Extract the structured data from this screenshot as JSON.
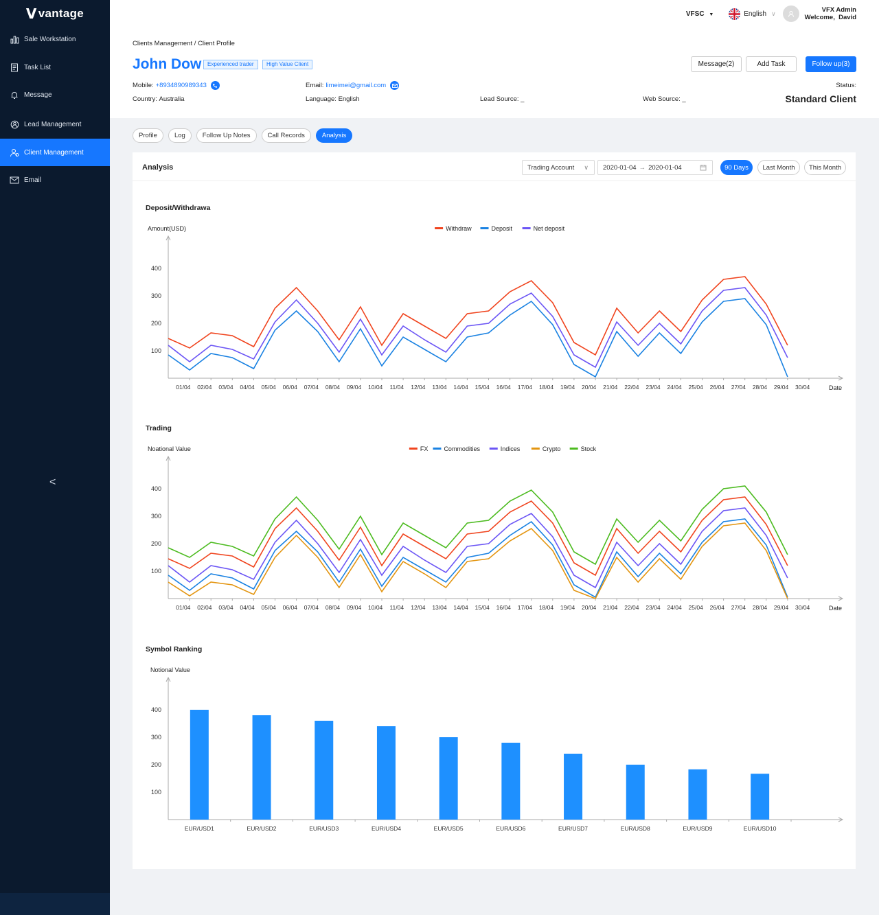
{
  "app": {
    "logo": "vantage"
  },
  "sidebar": {
    "items": [
      {
        "label": "Sale Workstation",
        "icon": "bar-chart-icon"
      },
      {
        "label": "Task List",
        "icon": "task-list-icon"
      },
      {
        "label": "Message",
        "icon": "bell-icon"
      },
      {
        "label": "Lead Management",
        "icon": "lead-icon"
      },
      {
        "label": "Client Management",
        "icon": "users-icon",
        "active": true
      },
      {
        "label": "Email",
        "icon": "mail-icon"
      }
    ],
    "collapse_glyph": "<"
  },
  "topbar": {
    "entity": "VFSC",
    "language": "English",
    "user_name": "VFX Admin",
    "welcome": "Welcome,  David"
  },
  "breadcrumb": {
    "parent": "Clients Management /",
    "current": "Client Profile"
  },
  "client": {
    "name": "John Dow",
    "tags": [
      "Experienced trader",
      "High Value Client"
    ],
    "mobile_label": "Mobile:",
    "mobile": "+8934890989343",
    "email_label": "Email:",
    "email": "limeimei@gmail.com",
    "country_label": "Country:",
    "country": "Australia",
    "language_label": "Language:",
    "language": "English",
    "lead_source_label": "Lead Source:",
    "lead_source": "_",
    "web_source_label": "Web Source:",
    "web_source": "_",
    "status_label": "Status:",
    "status": "Standard Client"
  },
  "actions": {
    "message": "Message(2)",
    "add_task": "Add Task",
    "follow_up": "Follow up(3)"
  },
  "tabs": [
    "Profile",
    "Log",
    "Follow Up Notes",
    "Call Records",
    "Analysis"
  ],
  "analysis": {
    "title": "Analysis",
    "account_select": "Trading Account",
    "date_from": "2020-01-04",
    "date_to": "2020-01-04",
    "ranges": [
      "90 Days",
      "Last Month",
      "This Month"
    ],
    "active_range": "90 Days"
  },
  "colors": {
    "primary": "#1677ff",
    "withdraw": "#f0441e",
    "deposit": "#1a82e2",
    "net": "#6b55f5",
    "crypto": "#e39510",
    "stock": "#4cbb1f",
    "bar": "#1e90ff"
  },
  "chart_data": [
    {
      "type": "line",
      "title": "Deposit/Withdrawa",
      "ylabel": "Amount(USD)",
      "xlabel": "Date",
      "ylim": [
        0,
        500
      ],
      "yticks": [
        100,
        200,
        300,
        400
      ],
      "legend": "top-center",
      "categories": [
        "01/04",
        "02/04",
        "03/04",
        "04/04",
        "05/04",
        "06/04",
        "07/04",
        "08/04",
        "09/04",
        "10/04",
        "11/04",
        "12/04",
        "13/04",
        "14/04",
        "15/04",
        "16/04",
        "17/04",
        "18/04",
        "19/04",
        "20/04",
        "21/04",
        "22/04",
        "23/04",
        "24/04",
        "25/04",
        "26/04",
        "27/04",
        "28/04",
        "29/04",
        "30/04"
      ],
      "series": [
        {
          "name": "Withdraw",
          "color": "#f0441e",
          "values": [
            145,
            110,
            165,
            155,
            115,
            255,
            330,
            245,
            140,
            260,
            120,
            235,
            190,
            145,
            235,
            245,
            315,
            355,
            275,
            130,
            85,
            255,
            165,
            245,
            170,
            285,
            360,
            370,
            270,
            120
          ]
        },
        {
          "name": "Deposit",
          "color": "#1a82e2",
          "values": [
            85,
            30,
            90,
            75,
            35,
            175,
            245,
            170,
            60,
            180,
            45,
            150,
            105,
            60,
            150,
            165,
            230,
            280,
            195,
            50,
            5,
            170,
            80,
            165,
            90,
            205,
            280,
            290,
            195,
            5
          ]
        },
        {
          "name": "Net deposit",
          "color": "#6b55f5",
          "values": [
            120,
            60,
            120,
            105,
            70,
            205,
            285,
            200,
            95,
            215,
            85,
            190,
            140,
            95,
            190,
            200,
            270,
            310,
            225,
            85,
            40,
            205,
            120,
            200,
            125,
            245,
            320,
            330,
            230,
            75
          ]
        }
      ]
    },
    {
      "type": "line",
      "title": "Trading",
      "ylabel": "Noational Value",
      "xlabel": "Date",
      "ylim": [
        0,
        500
      ],
      "yticks": [
        100,
        200,
        300,
        400
      ],
      "legend": "top-center",
      "categories": [
        "01/04",
        "02/04",
        "03/04",
        "04/04",
        "05/04",
        "06/04",
        "07/04",
        "08/04",
        "09/04",
        "10/04",
        "11/04",
        "12/04",
        "13/04",
        "14/04",
        "15/04",
        "16/04",
        "17/04",
        "18/04",
        "19/04",
        "20/04",
        "21/04",
        "22/04",
        "23/04",
        "24/04",
        "25/04",
        "26/04",
        "27/04",
        "28/04",
        "29/04",
        "30/04"
      ],
      "series": [
        {
          "name": "FX",
          "color": "#f0441e",
          "values": [
            145,
            110,
            165,
            155,
            115,
            255,
            330,
            245,
            140,
            260,
            120,
            235,
            190,
            145,
            235,
            245,
            315,
            355,
            275,
            130,
            85,
            255,
            165,
            245,
            170,
            285,
            360,
            370,
            270,
            120
          ]
        },
        {
          "name": "Commodities",
          "color": "#1a82e2",
          "values": [
            85,
            30,
            90,
            75,
            35,
            175,
            245,
            170,
            60,
            180,
            45,
            150,
            105,
            60,
            150,
            165,
            230,
            280,
            195,
            50,
            5,
            170,
            80,
            165,
            90,
            205,
            280,
            290,
            195,
            5
          ]
        },
        {
          "name": "Indices",
          "color": "#6b55f5",
          "values": [
            120,
            60,
            120,
            105,
            70,
            205,
            285,
            200,
            95,
            215,
            85,
            190,
            140,
            95,
            190,
            200,
            270,
            310,
            225,
            85,
            40,
            205,
            120,
            200,
            125,
            245,
            320,
            330,
            230,
            75
          ]
        },
        {
          "name": "Crypto",
          "color": "#e39510",
          "values": [
            60,
            10,
            60,
            50,
            15,
            150,
            230,
            150,
            40,
            160,
            25,
            135,
            90,
            40,
            135,
            145,
            210,
            255,
            175,
            30,
            0,
            150,
            60,
            145,
            70,
            190,
            265,
            275,
            175,
            0
          ]
        },
        {
          "name": "Stock",
          "color": "#4cbb1f",
          "values": [
            185,
            150,
            205,
            190,
            155,
            290,
            370,
            285,
            180,
            300,
            160,
            275,
            230,
            185,
            275,
            285,
            355,
            395,
            315,
            170,
            125,
            290,
            205,
            285,
            210,
            325,
            400,
            410,
            315,
            160
          ]
        }
      ]
    },
    {
      "type": "bar",
      "title": "Symbol Ranking",
      "ylabel": "Notional Value",
      "ylim": [
        0,
        500
      ],
      "yticks": [
        100,
        200,
        300,
        400
      ],
      "categories": [
        "EUR/USD1",
        "EUR/USD2",
        "EUR/USD3",
        "EUR/USD4",
        "EUR/USD5",
        "EUR/USD6",
        "EUR/USD7",
        "EUR/USD8",
        "EUR/USD9",
        "EUR/USD10"
      ],
      "values": [
        400,
        380,
        360,
        340,
        300,
        280,
        240,
        200,
        183,
        167
      ],
      "color": "#1e90ff"
    }
  ]
}
